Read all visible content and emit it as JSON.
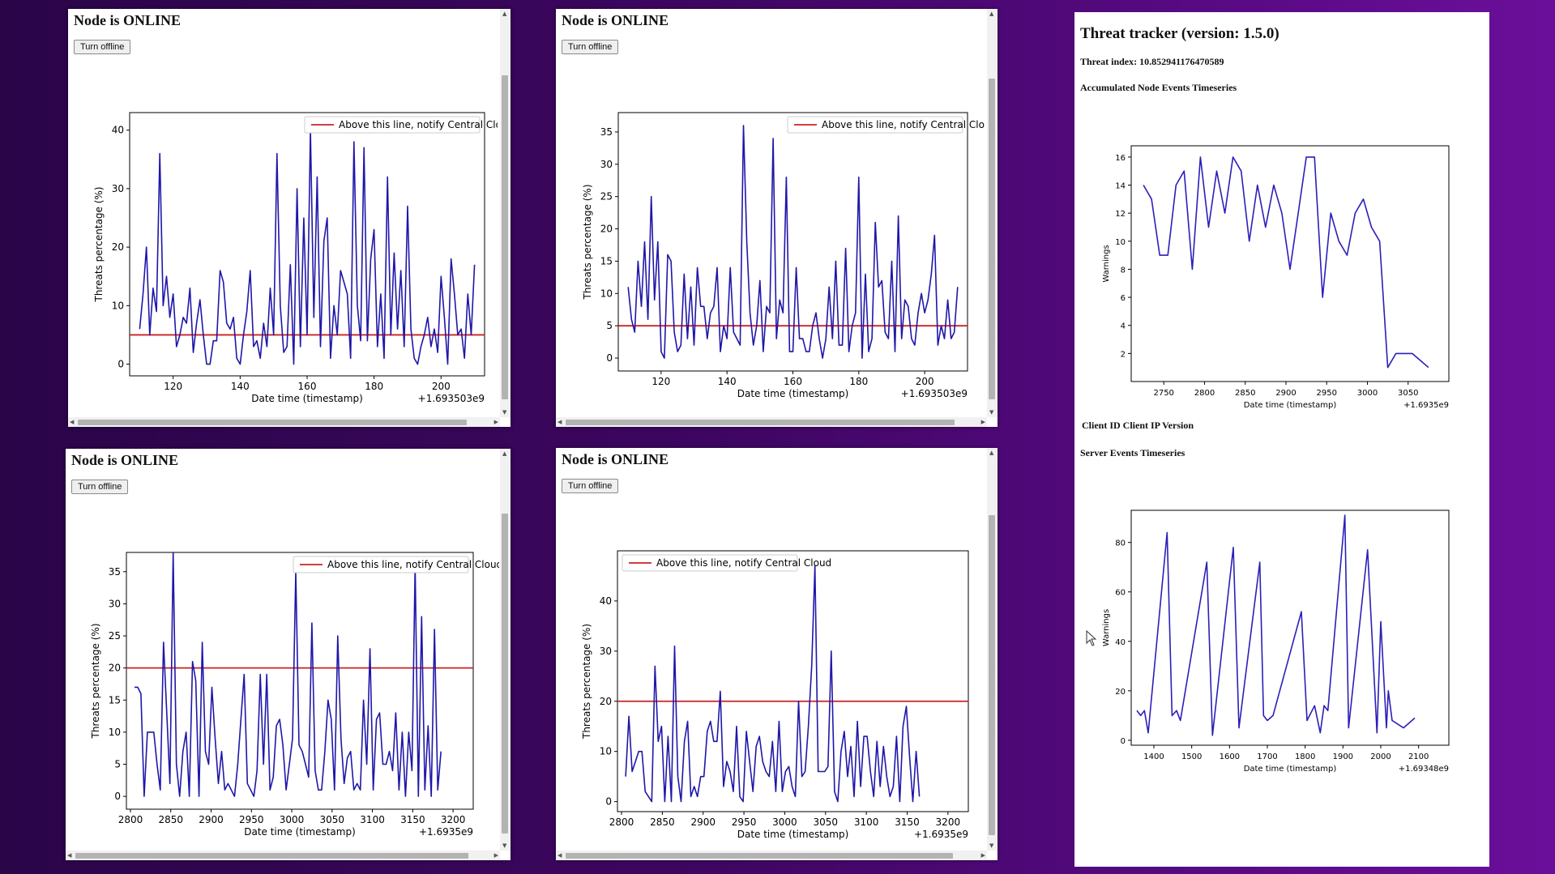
{
  "colors": {
    "line": "#1f17a8",
    "threshold": "#cc2222",
    "line2": "#2b1fb8"
  },
  "nodes": [
    {
      "title": "Node is ONLINE",
      "button": "Turn offline",
      "chart": {
        "type": "line",
        "xlabel": "Date time (timestamp)",
        "ylabel": "Threats percentage (%)",
        "offset": "+1.693503e9",
        "xlim": [
          107,
          213
        ],
        "ylim": [
          -2,
          43
        ],
        "xticks": [
          120,
          140,
          160,
          180,
          200
        ],
        "yticks": [
          0,
          10,
          20,
          30,
          40
        ],
        "threshold": 5,
        "legend": "Above this line, notify Central Cloud",
        "legend_pos": "top-right",
        "x_start": 110,
        "x_step": 1,
        "values": [
          6,
          12,
          20,
          5,
          13,
          9,
          36,
          10,
          15,
          8,
          12,
          3,
          5,
          8,
          7,
          13,
          2,
          7,
          11,
          5,
          0,
          0,
          4,
          4,
          16,
          14,
          7,
          6,
          8,
          1,
          0,
          5,
          9,
          16,
          3,
          4,
          1,
          7,
          3,
          13,
          5,
          36,
          10,
          2,
          3,
          17,
          0,
          30,
          3,
          25,
          5,
          40,
          8,
          32,
          3,
          21,
          25,
          1,
          10,
          5,
          16,
          14,
          12,
          1,
          38,
          10,
          4,
          37,
          4,
          18,
          23,
          3,
          12,
          1,
          32,
          5,
          19,
          6,
          16,
          3,
          27,
          6,
          1,
          0,
          3,
          5,
          8,
          3,
          6,
          2,
          15,
          8,
          0,
          18,
          12,
          5,
          6,
          1,
          12,
          5,
          17
        ]
      }
    },
    {
      "title": "Node is ONLINE",
      "button": "Turn offline",
      "chart": {
        "type": "line",
        "xlabel": "Date time (timestamp)",
        "ylabel": "Threats percentage (%)",
        "offset": "+1.693503e9",
        "xlim": [
          107,
          213
        ],
        "ylim": [
          -2,
          38
        ],
        "xticks": [
          120,
          140,
          160,
          180,
          200
        ],
        "yticks": [
          0,
          5,
          10,
          15,
          20,
          25,
          30,
          35
        ],
        "threshold": 5,
        "legend": "Above this line, notify Central Cloud",
        "legend_pos": "top-right",
        "x_start": 110,
        "x_step": 1,
        "values": [
          11,
          6,
          4,
          15,
          8,
          18,
          6,
          25,
          9,
          18,
          1,
          0,
          16,
          15,
          4,
          1,
          2,
          13,
          3,
          11,
          2,
          14,
          8,
          8,
          3,
          7,
          8,
          14,
          1,
          5,
          3,
          14,
          4,
          3,
          2,
          36,
          18,
          7,
          2,
          5,
          12,
          1,
          8,
          7,
          34,
          3,
          9,
          7,
          28,
          1,
          1,
          14,
          3,
          3,
          1,
          1,
          5,
          7,
          3,
          0,
          3,
          11,
          3,
          15,
          2,
          2,
          17,
          1,
          5,
          7,
          28,
          0,
          13,
          1,
          3,
          21,
          11,
          12,
          4,
          3,
          15,
          1,
          22,
          3,
          9,
          8,
          3,
          2,
          7,
          10,
          7,
          9,
          13,
          19,
          2,
          5,
          3,
          9,
          3,
          4,
          11
        ]
      }
    },
    {
      "title": "Node is ONLINE",
      "button": "Turn offline",
      "chart": {
        "type": "line",
        "xlabel": "Date time (timestamp)",
        "ylabel": "Threats percentage (%)",
        "offset": "+1.6935e9",
        "xlim": [
          2795,
          3225
        ],
        "ylim": [
          -2,
          38
        ],
        "xticks": [
          2800,
          2850,
          2900,
          2950,
          3000,
          3050,
          3100,
          3150,
          3200
        ],
        "yticks": [
          0,
          5,
          10,
          15,
          20,
          25,
          30,
          35
        ],
        "threshold": 20,
        "legend": "Above this line, notify Central Cloud",
        "legend_pos": "top-right",
        "x_start": 2805,
        "x_step": 4,
        "values": [
          17,
          17,
          16,
          0,
          10,
          10,
          10,
          5,
          1,
          24,
          13,
          2,
          38,
          5,
          0,
          7,
          10,
          0,
          21,
          18,
          0,
          24,
          7,
          5,
          17,
          9,
          2,
          7,
          1,
          2,
          1,
          0,
          5,
          12,
          19,
          2,
          1,
          0,
          4,
          19,
          5,
          19,
          1,
          3,
          11,
          12,
          8,
          1,
          5,
          9,
          35,
          8,
          7,
          5,
          3,
          27,
          4,
          1,
          1,
          7,
          15,
          12,
          1,
          25,
          9,
          2,
          6,
          7,
          1,
          2,
          1,
          15,
          5,
          23,
          1,
          12,
          13,
          5,
          5,
          7,
          4,
          13,
          1,
          10,
          0,
          10,
          4,
          36,
          0,
          28,
          1,
          11,
          0,
          26,
          1,
          7
        ]
      }
    },
    {
      "title": "Node is ONLINE",
      "button": "Turn offline",
      "chart": {
        "type": "line",
        "xlabel": "Date time (timestamp)",
        "ylabel": "Threats percentage (%)",
        "offset": "+1.6935e9",
        "xlim": [
          2795,
          3225
        ],
        "ylim": [
          -2,
          50
        ],
        "xticks": [
          2800,
          2850,
          2900,
          2950,
          3000,
          3050,
          3100,
          3150,
          3200
        ],
        "yticks": [
          0,
          10,
          20,
          30,
          40
        ],
        "threshold": 20,
        "legend": "Above this line, notify Central Cloud",
        "legend_pos": "top-left",
        "x_start": 2805,
        "x_step": 4,
        "values": [
          5,
          17,
          6,
          8,
          10,
          10,
          2,
          1,
          0,
          27,
          12,
          15,
          0,
          13,
          0,
          31,
          5,
          0,
          12,
          16,
          1,
          3,
          1,
          5,
          5,
          14,
          16,
          12,
          12,
          22,
          3,
          8,
          6,
          2,
          15,
          1,
          0,
          14,
          8,
          2,
          11,
          13,
          8,
          6,
          5,
          12,
          2,
          16,
          2,
          6,
          7,
          3,
          1,
          20,
          5,
          6,
          15,
          27,
          47,
          6,
          6,
          6,
          7,
          30,
          2,
          0,
          10,
          14,
          5,
          11,
          1,
          16,
          3,
          13,
          13,
          6,
          1,
          12,
          3,
          11,
          5,
          1,
          3,
          13,
          0,
          15,
          19,
          9,
          0,
          10,
          1
        ]
      }
    }
  ],
  "tracker": {
    "title": "Threat tracker (version: 1.5.0)",
    "threat_index": "Threat index: 10.852941176470589",
    "accum_label": "Accumulated Node Events Timeseries",
    "client_header": "Client ID Client IP Version",
    "server_label": "Server Events Timeseries",
    "chart1": {
      "type": "line",
      "xlabel": "Date time (timestamp)",
      "ylabel": "Warnings",
      "offset": "+1.6935e9",
      "xlim": [
        2710,
        3100
      ],
      "ylim": [
        0,
        16.8
      ],
      "xticks": [
        2750,
        2800,
        2850,
        2900,
        2950,
        3000,
        3050
      ],
      "yticks": [
        2,
        4,
        6,
        8,
        10,
        12,
        14,
        16
      ],
      "x": [
        2725,
        2735,
        2745,
        2755,
        2765,
        2775,
        2785,
        2795,
        2805,
        2815,
        2825,
        2835,
        2845,
        2855,
        2865,
        2875,
        2885,
        2895,
        2905,
        2915,
        2925,
        2935,
        2945,
        2955,
        2965,
        2975,
        2985,
        2995,
        3005,
        3015,
        3025,
        3035,
        3045,
        3055,
        3065,
        3075
      ],
      "values": [
        14,
        13,
        9,
        9,
        14,
        15,
        8,
        16,
        11,
        15,
        12,
        16,
        15,
        10,
        14,
        11,
        14,
        12,
        8,
        12,
        16,
        16,
        6,
        12,
        10,
        9,
        12,
        13,
        11,
        10,
        1,
        2,
        2,
        2,
        1.5,
        1
      ]
    },
    "chart2": {
      "type": "line",
      "xlabel": "Date time (timestamp)",
      "ylabel": "Warnings",
      "offset": "+1.69348e9",
      "xlim": [
        1340,
        2180
      ],
      "ylim": [
        -2,
        93
      ],
      "xticks": [
        1400,
        1500,
        1600,
        1700,
        1800,
        1900,
        2000,
        2100
      ],
      "yticks": [
        0,
        20,
        40,
        60,
        80
      ],
      "x": [
        1355,
        1365,
        1375,
        1385,
        1435,
        1448,
        1460,
        1470,
        1540,
        1555,
        1610,
        1625,
        1680,
        1690,
        1700,
        1715,
        1790,
        1805,
        1825,
        1840,
        1850,
        1860,
        1905,
        1915,
        1965,
        1990,
        2000,
        2015,
        2020,
        2030,
        2060,
        2090
      ],
      "values": [
        12,
        10,
        12,
        3,
        84,
        10,
        12,
        8,
        72,
        2,
        78,
        5,
        72,
        10,
        8,
        10,
        52,
        8,
        14,
        3,
        14,
        12,
        91,
        5,
        77,
        3,
        48,
        5,
        20,
        8,
        5,
        9
      ]
    }
  }
}
